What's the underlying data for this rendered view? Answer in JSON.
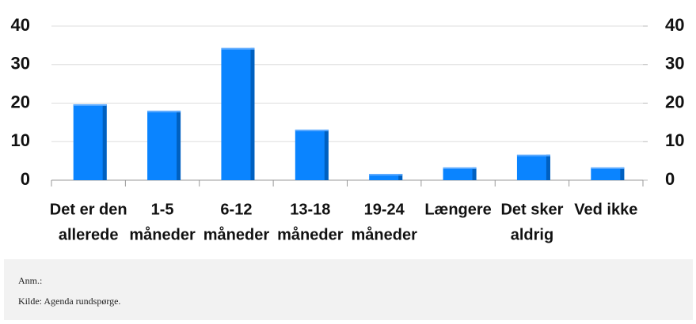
{
  "chart_data": {
    "type": "bar",
    "categories": [
      [
        "Det er den",
        "allerede"
      ],
      [
        "1-5",
        "måneder"
      ],
      [
        "6-12",
        "måneder"
      ],
      [
        "13-18",
        "måneder"
      ],
      [
        "19-24",
        "måneder"
      ],
      [
        "Længere"
      ],
      [
        "Det sker",
        "aldrig"
      ],
      [
        "Ved ikke"
      ]
    ],
    "values": [
      19.7,
      18.0,
      34.3,
      13.1,
      1.6,
      3.3,
      6.6,
      3.3
    ],
    "color": "#0a84ff",
    "ylim": [
      0,
      40
    ],
    "yticks": [
      0,
      10,
      20,
      30,
      40
    ],
    "y2lim": [
      0,
      40
    ],
    "y2ticks": [
      0,
      10,
      20,
      30,
      40
    ],
    "grid": true
  },
  "notes": [
    "Anm.:",
    "Kilde: Agenda rundspørge."
  ]
}
